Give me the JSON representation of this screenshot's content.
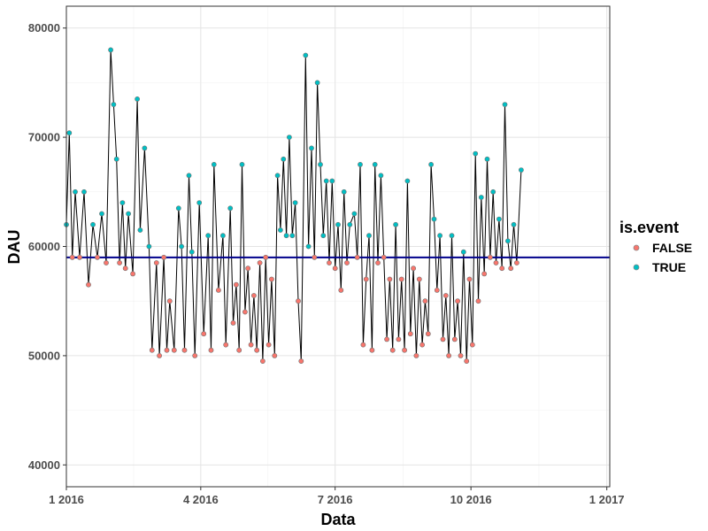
{
  "chart_data": {
    "type": "line",
    "title": "",
    "xlabel": "Data",
    "ylabel": "DAU",
    "xlim": [
      0,
      368
    ],
    "ylim": [
      38000,
      82000
    ],
    "x_ticks": [
      {
        "value": 0,
        "label": "1 2016"
      },
      {
        "value": 91,
        "label": "4 2016"
      },
      {
        "value": 182,
        "label": "7 2016"
      },
      {
        "value": 274,
        "label": "10 2016"
      },
      {
        "value": 366,
        "label": "1 2017"
      }
    ],
    "y_ticks": [
      {
        "value": 40000,
        "label": "40000"
      },
      {
        "value": 50000,
        "label": "50000"
      },
      {
        "value": 60000,
        "label": "60000"
      },
      {
        "value": 70000,
        "label": "70000"
      },
      {
        "value": 80000,
        "label": "80000"
      }
    ],
    "reference_line": {
      "value": 59000,
      "color": "#00008B"
    },
    "legend": {
      "title": "is.event",
      "position": "right",
      "entries": [
        {
          "label": "FALSE",
          "color": "#F8766D"
        },
        {
          "label": "TRUE",
          "color": "#00BFC4"
        }
      ]
    },
    "series": [
      {
        "name": "DAU",
        "anchors": [
          [
            0,
            62000
          ],
          [
            2,
            70400
          ],
          [
            4,
            59000
          ],
          [
            6,
            65000
          ],
          [
            9,
            59000
          ],
          [
            12,
            65000
          ],
          [
            15,
            56500
          ],
          [
            18,
            62000
          ],
          [
            21,
            59000
          ],
          [
            24,
            63000
          ],
          [
            27,
            58500
          ],
          [
            30,
            78000
          ],
          [
            32,
            73000
          ],
          [
            34,
            68000
          ],
          [
            36,
            58500
          ],
          [
            38,
            64000
          ],
          [
            40,
            58000
          ],
          [
            42,
            63000
          ],
          [
            45,
            57500
          ],
          [
            48,
            73500
          ],
          [
            50,
            61500
          ],
          [
            53,
            69000
          ],
          [
            56,
            60000
          ],
          [
            58,
            50500
          ],
          [
            61,
            58500
          ],
          [
            63,
            50000
          ],
          [
            66,
            59000
          ],
          [
            68,
            50500
          ],
          [
            70,
            55000
          ],
          [
            73,
            50500
          ],
          [
            76,
            63500
          ],
          [
            78,
            60000
          ],
          [
            80,
            50500
          ],
          [
            83,
            66500
          ],
          [
            85,
            59500
          ],
          [
            87,
            50000
          ],
          [
            90,
            64000
          ],
          [
            93,
            52000
          ],
          [
            96,
            61000
          ],
          [
            98,
            50500
          ],
          [
            100,
            67500
          ],
          [
            103,
            56000
          ],
          [
            106,
            61000
          ],
          [
            108,
            51000
          ],
          [
            111,
            63500
          ],
          [
            113,
            53000
          ],
          [
            115,
            56500
          ],
          [
            117,
            50500
          ],
          [
            119,
            67500
          ],
          [
            121,
            54000
          ],
          [
            123,
            58000
          ],
          [
            125,
            51000
          ],
          [
            127,
            55500
          ],
          [
            129,
            50500
          ],
          [
            131,
            58500
          ],
          [
            133,
            49500
          ],
          [
            135,
            59000
          ],
          [
            137,
            51000
          ],
          [
            139,
            57000
          ],
          [
            141,
            50000
          ],
          [
            143,
            66500
          ],
          [
            145,
            61500
          ],
          [
            147,
            68000
          ],
          [
            149,
            61000
          ],
          [
            151,
            70000
          ],
          [
            153,
            61000
          ],
          [
            155,
            64000
          ],
          [
            157,
            55000
          ],
          [
            159,
            49500
          ],
          [
            162,
            77500
          ],
          [
            164,
            60000
          ],
          [
            166,
            69000
          ],
          [
            168,
            59000
          ],
          [
            170,
            75000
          ],
          [
            172,
            67500
          ],
          [
            174,
            61000
          ],
          [
            176,
            66000
          ],
          [
            178,
            58500
          ],
          [
            180,
            66000
          ],
          [
            182,
            58000
          ],
          [
            184,
            62000
          ],
          [
            186,
            56000
          ],
          [
            188,
            65000
          ],
          [
            190,
            58500
          ],
          [
            192,
            62000
          ],
          [
            195,
            63000
          ],
          [
            197,
            59000
          ],
          [
            199,
            67500
          ],
          [
            201,
            51000
          ],
          [
            203,
            57000
          ],
          [
            205,
            61000
          ],
          [
            207,
            50500
          ],
          [
            209,
            67500
          ],
          [
            211,
            58500
          ],
          [
            213,
            66500
          ],
          [
            215,
            59000
          ],
          [
            217,
            51500
          ],
          [
            219,
            57000
          ],
          [
            221,
            50500
          ],
          [
            223,
            62000
          ],
          [
            225,
            51500
          ],
          [
            227,
            57000
          ],
          [
            229,
            50500
          ],
          [
            231,
            66000
          ],
          [
            233,
            52000
          ],
          [
            235,
            58000
          ],
          [
            237,
            50000
          ],
          [
            239,
            57000
          ],
          [
            241,
            51000
          ],
          [
            243,
            55000
          ],
          [
            245,
            52000
          ],
          [
            247,
            67500
          ],
          [
            249,
            62500
          ],
          [
            251,
            56000
          ],
          [
            253,
            61000
          ],
          [
            255,
            51500
          ],
          [
            257,
            55500
          ],
          [
            259,
            50000
          ],
          [
            261,
            61000
          ],
          [
            263,
            51500
          ],
          [
            265,
            55000
          ],
          [
            267,
            50000
          ],
          [
            269,
            59500
          ],
          [
            271,
            49500
          ],
          [
            273,
            57000
          ],
          [
            275,
            51000
          ],
          [
            277,
            68500
          ],
          [
            279,
            55000
          ],
          [
            281,
            64500
          ],
          [
            283,
            57500
          ],
          [
            285,
            68000
          ],
          [
            287,
            59000
          ],
          [
            289,
            65000
          ],
          [
            291,
            58500
          ],
          [
            293,
            62500
          ],
          [
            295,
            58000
          ],
          [
            297,
            73000
          ],
          [
            299,
            60500
          ],
          [
            301,
            58000
          ],
          [
            303,
            62000
          ],
          [
            305,
            58500
          ],
          [
            308,
            67000
          ]
        ]
      }
    ]
  }
}
